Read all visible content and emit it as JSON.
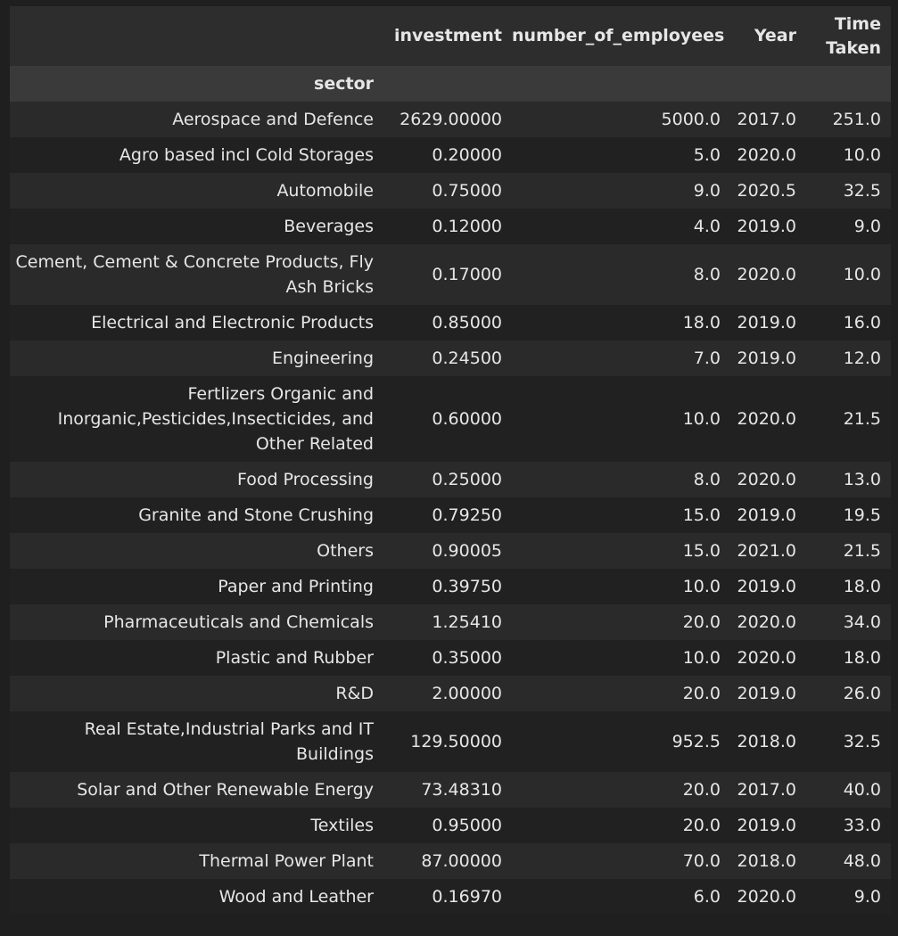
{
  "table": {
    "columns": [
      "investment",
      "number_of_employees",
      "Year",
      "Time Taken"
    ],
    "time_taken_line1": "Time",
    "time_taken_line2": "Taken",
    "index_name": "sector",
    "rows": [
      {
        "sector": "Aerospace and Defence",
        "investment": "2629.00000",
        "number_of_employees": "5000.0",
        "Year": "2017.0",
        "time_taken": "251.0"
      },
      {
        "sector": "Agro based incl Cold Storages",
        "investment": "0.20000",
        "number_of_employees": "5.0",
        "Year": "2020.0",
        "time_taken": "10.0"
      },
      {
        "sector": "Automobile",
        "investment": "0.75000",
        "number_of_employees": "9.0",
        "Year": "2020.5",
        "time_taken": "32.5"
      },
      {
        "sector": "Beverages",
        "investment": "0.12000",
        "number_of_employees": "4.0",
        "Year": "2019.0",
        "time_taken": "9.0"
      },
      {
        "sector": "Cement, Cement & Concrete Products, Fly Ash Bricks",
        "investment": "0.17000",
        "number_of_employees": "8.0",
        "Year": "2020.0",
        "time_taken": "10.0"
      },
      {
        "sector": "Electrical and Electronic Products",
        "investment": "0.85000",
        "number_of_employees": "18.0",
        "Year": "2019.0",
        "time_taken": "16.0"
      },
      {
        "sector": "Engineering",
        "investment": "0.24500",
        "number_of_employees": "7.0",
        "Year": "2019.0",
        "time_taken": "12.0"
      },
      {
        "sector": "Fertlizers Organic and Inorganic,Pesticides,Insecticides, and Other Related",
        "investment": "0.60000",
        "number_of_employees": "10.0",
        "Year": "2020.0",
        "time_taken": "21.5"
      },
      {
        "sector": "Food Processing",
        "investment": "0.25000",
        "number_of_employees": "8.0",
        "Year": "2020.0",
        "time_taken": "13.0"
      },
      {
        "sector": "Granite and Stone Crushing",
        "investment": "0.79250",
        "number_of_employees": "15.0",
        "Year": "2019.0",
        "time_taken": "19.5"
      },
      {
        "sector": "Others",
        "investment": "0.90005",
        "number_of_employees": "15.0",
        "Year": "2021.0",
        "time_taken": "21.5"
      },
      {
        "sector": "Paper and Printing",
        "investment": "0.39750",
        "number_of_employees": "10.0",
        "Year": "2019.0",
        "time_taken": "18.0"
      },
      {
        "sector": "Pharmaceuticals and Chemicals",
        "investment": "1.25410",
        "number_of_employees": "20.0",
        "Year": "2020.0",
        "time_taken": "34.0"
      },
      {
        "sector": "Plastic and Rubber",
        "investment": "0.35000",
        "number_of_employees": "10.0",
        "Year": "2020.0",
        "time_taken": "18.0"
      },
      {
        "sector": "R&D",
        "investment": "2.00000",
        "number_of_employees": "20.0",
        "Year": "2019.0",
        "time_taken": "26.0"
      },
      {
        "sector": "Real Estate,Industrial Parks and IT Buildings",
        "investment": "129.50000",
        "number_of_employees": "952.5",
        "Year": "2018.0",
        "time_taken": "32.5"
      },
      {
        "sector": "Solar and Other Renewable Energy",
        "investment": "73.48310",
        "number_of_employees": "20.0",
        "Year": "2017.0",
        "time_taken": "40.0"
      },
      {
        "sector": "Textiles",
        "investment": "0.95000",
        "number_of_employees": "20.0",
        "Year": "2019.0",
        "time_taken": "33.0"
      },
      {
        "sector": "Thermal Power Plant",
        "investment": "87.00000",
        "number_of_employees": "70.0",
        "Year": "2018.0",
        "time_taken": "48.0"
      },
      {
        "sector": "Wood and Leather",
        "investment": "0.16970",
        "number_of_employees": "6.0",
        "Year": "2020.0",
        "time_taken": "9.0"
      }
    ]
  }
}
